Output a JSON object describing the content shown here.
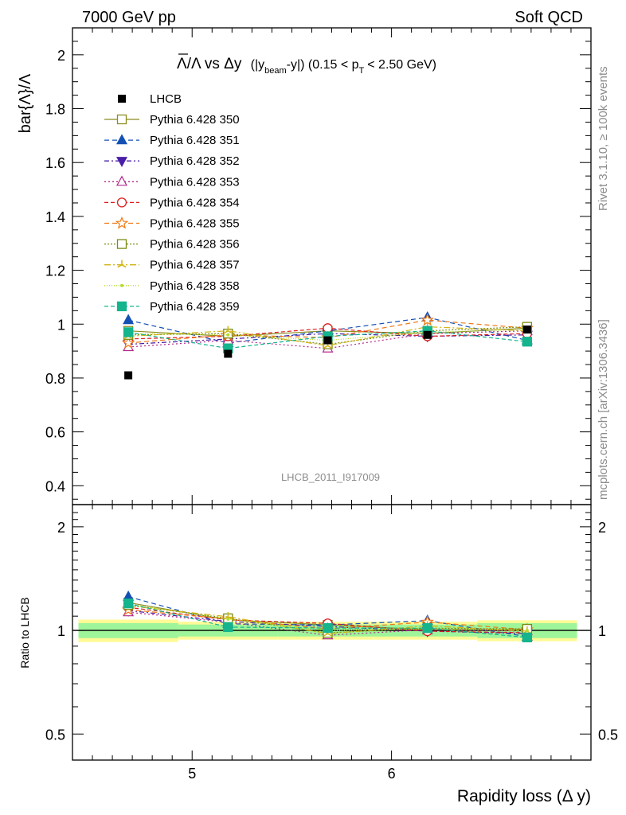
{
  "header": {
    "left": "7000 GeV pp",
    "right": "Soft QCD"
  },
  "side": {
    "rivet": "Rivet 3.1.10, ≥ 100k events",
    "mcplots": "mcplots.cern.ch [arXiv:1306.3436]"
  },
  "analysis_id": "LHCB_2011_I917009",
  "chart_data": {
    "type": "scatter",
    "title": {
      "main": "Λ/Λ vs Δy",
      "paren_open": "(|y",
      "beam_sub": "beam",
      "mid": "-y|) (0.15 < p",
      "pt_sub": "T",
      "end": "< 2.50 GeV)"
    },
    "ylabel": "bar{Λ}/Λ",
    "ratio_ylabel": "Ratio to LHCB",
    "xlabel": "Rapidity loss (Δ y)",
    "xlim": [
      4.4,
      7.0
    ],
    "ylim": [
      0.33,
      2.1
    ],
    "ratio_ylim": [
      0.42,
      2.32
    ],
    "ratio_log": true,
    "x_ticks": [
      {
        "v": 5,
        "label": "5"
      },
      {
        "v": 6,
        "label": "6"
      }
    ],
    "y_ticks": [
      {
        "v": 0.4,
        "label": "0.4"
      },
      {
        "v": 0.6,
        "label": "0.6"
      },
      {
        "v": 0.8,
        "label": "0.8"
      },
      {
        "v": 1.0,
        "label": "1"
      },
      {
        "v": 1.2,
        "label": "1.2"
      },
      {
        "v": 1.4,
        "label": "1.4"
      },
      {
        "v": 1.6,
        "label": "1.6"
      },
      {
        "v": 1.8,
        "label": "1.8"
      },
      {
        "v": 2.0,
        "label": "2"
      }
    ],
    "ratio_ticks": [
      {
        "v": 0.5,
        "label": "0.5"
      },
      {
        "v": 1,
        "label": "1"
      },
      {
        "v": 2,
        "label": "2"
      }
    ],
    "x": [
      4.68,
      5.18,
      5.68,
      6.18,
      6.68
    ],
    "data": {
      "name": "LHCB",
      "values": [
        0.81,
        0.89,
        0.94,
        0.96,
        0.98
      ],
      "errors": [
        0.01,
        0.01,
        0.01,
        0.01,
        0.01
      ],
      "band_yellow": [
        0.075,
        0.06,
        0.06,
        0.06,
        0.07
      ],
      "band_green": [
        0.05,
        0.04,
        0.04,
        0.04,
        0.05
      ]
    },
    "series": [
      {
        "name": "Pythia 6.428 350",
        "color": "#8c8c20",
        "dash": "",
        "marker": "square-open",
        "values": [
          0.975,
          0.955,
          0.975,
          0.965,
          0.985
        ]
      },
      {
        "name": "Pythia 6.428 351",
        "color": "#1450b4",
        "dash": "6,4",
        "marker": "triangle-up",
        "values": [
          1.015,
          0.93,
          0.975,
          1.025,
          0.94
        ]
      },
      {
        "name": "Pythia 6.428 352",
        "color": "#4a1ea8",
        "dash": "6,3,2,3",
        "marker": "triangle-down",
        "values": [
          0.925,
          0.945,
          0.965,
          0.955,
          0.96
        ]
      },
      {
        "name": "Pythia 6.428 353",
        "color": "#b4288c",
        "dash": "2,3",
        "marker": "triangle-open",
        "values": [
          0.915,
          0.94,
          0.91,
          0.965,
          0.975
        ]
      },
      {
        "name": "Pythia 6.428 354",
        "color": "#dc1e1e",
        "dash": "5,3",
        "marker": "circle-open",
        "values": [
          0.945,
          0.955,
          0.985,
          0.955,
          0.965
        ]
      },
      {
        "name": "Pythia 6.428 355",
        "color": "#f07814",
        "dash": "6,4",
        "marker": "star-open",
        "values": [
          0.93,
          0.96,
          0.95,
          1.015,
          0.985
        ]
      },
      {
        "name": "Pythia 6.428 356",
        "color": "#7a8c14",
        "dash": "2,2",
        "marker": "square-open",
        "values": [
          0.96,
          0.965,
          0.925,
          0.975,
          0.99
        ]
      },
      {
        "name": "Pythia 6.428 357",
        "color": "#d2b414",
        "dash": "8,3,2,3",
        "marker": "tri-star",
        "values": [
          0.955,
          0.975,
          0.92,
          0.99,
          0.975
        ]
      },
      {
        "name": "Pythia 6.428 358",
        "color": "#b4dc28",
        "dash": "1,2",
        "marker": "dot",
        "values": [
          0.965,
          0.96,
          0.94,
          0.97,
          0.98
        ]
      },
      {
        "name": "Pythia 6.428 359",
        "color": "#14b48c",
        "dash": "5,3",
        "marker": "square",
        "values": [
          0.97,
          0.91,
          0.955,
          0.975,
          0.935
        ]
      }
    ]
  }
}
